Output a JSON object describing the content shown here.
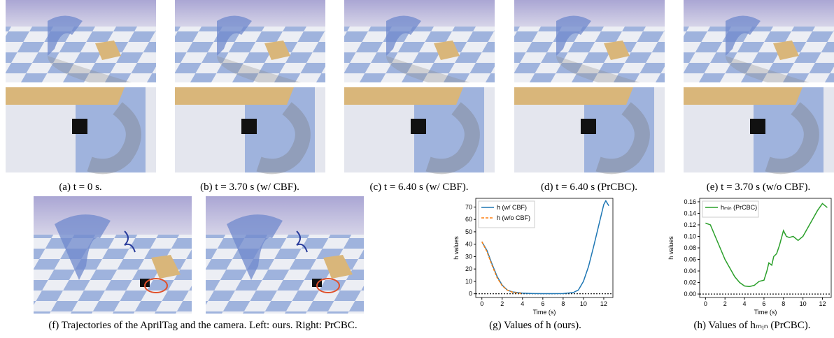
{
  "captions": [
    "(a) t = 0 s.",
    "(b) t = 3.70 s (w/ CBF).",
    "(c) t = 6.40 s (w/ CBF).",
    "(d) t = 6.40 s (PrCBC).",
    "(e) t = 3.70 s (w/o CBF).",
    "(f) Trajectories of the AprilTag and the camera. Left: ours. Right: PrCBC."
  ],
  "chart_data": [
    {
      "type": "line",
      "caption": "(g) Values of h (ours).",
      "xlabel": "Time (s)",
      "ylabel": "h values",
      "xlim": [
        -0.6,
        12.9
      ],
      "ylim": [
        -3,
        77
      ],
      "xticks": [
        0,
        2,
        4,
        6,
        8,
        10,
        12
      ],
      "yticks": [
        0,
        10,
        20,
        30,
        40,
        50,
        60,
        70
      ],
      "hline": 0,
      "legend": "upper left",
      "series": [
        {
          "name": "h (w/ CBF)",
          "color": "#1f77b4",
          "style": "solid",
          "x": [
            0,
            0.5,
            1,
            1.5,
            2,
            2.5,
            3,
            4,
            5,
            6,
            7,
            8,
            9,
            9.5,
            10,
            10.5,
            11,
            11.5,
            12,
            12.2,
            12.5
          ],
          "values": [
            42,
            35,
            24,
            14,
            7,
            3,
            1.5,
            0.5,
            0.2,
            0.1,
            0.1,
            0.2,
            1,
            3,
            10,
            22,
            38,
            55,
            72,
            75,
            71
          ]
        },
        {
          "name": "h (w/o CBF)",
          "color": "#ff7f0e",
          "style": "dashed",
          "x": [
            0,
            0.5,
            1,
            1.5,
            2,
            2.5,
            3,
            3.5,
            4
          ],
          "values": [
            42,
            34,
            23,
            13,
            6.5,
            3,
            1.3,
            0.6,
            0.3
          ]
        }
      ]
    },
    {
      "type": "line",
      "caption": "(h) Values of hₘᵢₙ (PrCBC).",
      "xlabel": "Time (s)",
      "ylabel": "h values",
      "xlim": [
        -0.6,
        12.9
      ],
      "ylim": [
        -0.006,
        0.166
      ],
      "xticks": [
        0,
        2,
        4,
        6,
        8,
        10,
        12
      ],
      "yticks": [
        {
          "value": 0,
          "label": "0.00"
        },
        {
          "value": 0.02,
          "label": "0.02"
        },
        {
          "value": 0.04,
          "label": "0.04"
        },
        {
          "value": 0.06,
          "label": "0.06"
        },
        {
          "value": 0.08,
          "label": "0.08"
        },
        {
          "value": 0.1,
          "label": "0.10"
        },
        {
          "value": 0.12,
          "label": "0.12"
        },
        {
          "value": 0.14,
          "label": "0.14"
        },
        {
          "value": 0.16,
          "label": "0.16"
        }
      ],
      "hline": 0,
      "legend": "upper left",
      "series": [
        {
          "name": "hₘᵢₙ (PrCBC)",
          "color": "#2ca02c",
          "style": "solid",
          "x": [
            0,
            0.5,
            1,
            1.5,
            2,
            2.5,
            3,
            3.5,
            4,
            4.5,
            5,
            5.5,
            6,
            6.3,
            6.5,
            6.8,
            7,
            7.3,
            7.6,
            8,
            8.3,
            8.6,
            9,
            9.5,
            10,
            10.5,
            11,
            11.5,
            12,
            12.5
          ],
          "values": [
            0.123,
            0.12,
            0.1,
            0.08,
            0.06,
            0.045,
            0.03,
            0.02,
            0.014,
            0.013,
            0.015,
            0.022,
            0.024,
            0.04,
            0.054,
            0.05,
            0.065,
            0.07,
            0.085,
            0.11,
            0.1,
            0.098,
            0.1,
            0.093,
            0.1,
            0.115,
            0.13,
            0.145,
            0.157,
            0.15
          ]
        }
      ]
    }
  ]
}
